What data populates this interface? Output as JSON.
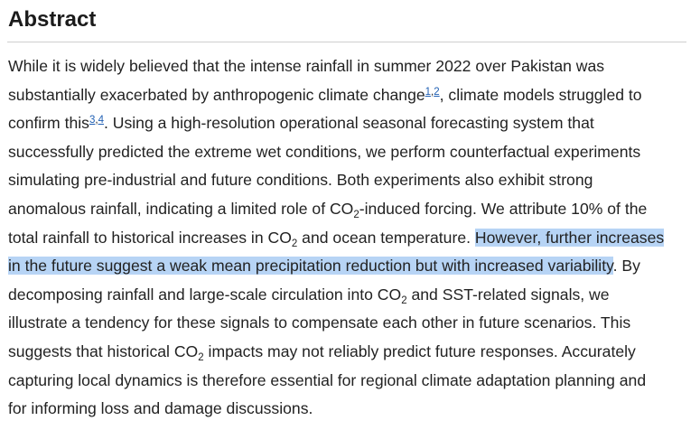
{
  "heading": "Abstract",
  "colors": {
    "text": "#222222",
    "link": "#1f5fb3",
    "highlight": "#b7d4f5",
    "rule": "#cfcfcf"
  },
  "abstract": {
    "l1": "While it is widely believed that the intense rainfall in summer 2022 over Pakistan was",
    "l2a": "substantially exacerbated by anthropogenic climate change",
    "ref1": "1",
    "ref_sep": ",",
    "ref2": "2",
    "l2b": ", climate models struggled to",
    "l3a": "confirm this",
    "ref3": "3",
    "ref4": "4",
    "l3b": ". Using a high-resolution operational seasonal forecasting system that",
    "l4": "successfully predicted the extreme wet conditions, we perform counterfactual experiments",
    "l5": "simulating pre-industrial and future conditions. Both experiments also exhibit strong",
    "l6a": "anomalous rainfall, indicating a limited role of CO",
    "sub": "2",
    "l6b": "-induced forcing. We attribute 10% of the",
    "l7a": "total rainfall to historical increases in CO",
    "l7b": " and ocean temperature. ",
    "hl1": "However, further increases",
    "hl2": "in the future suggest a weak mean precipitation reduction but with increased variability",
    "l8b": ". By",
    "l9a": "decomposing rainfall and large-scale circulation into CO",
    "l9b": " and SST-related signals, we",
    "l10": "illustrate a tendency for these signals to compensate each other in future scenarios. This",
    "l11a": "suggests that historical CO",
    "l11b": " impacts may not reliably predict future responses. Accurately",
    "l12": "capturing local dynamics is therefore essential for regional climate adaptation planning and",
    "l13": "for informing loss and damage discussions."
  }
}
